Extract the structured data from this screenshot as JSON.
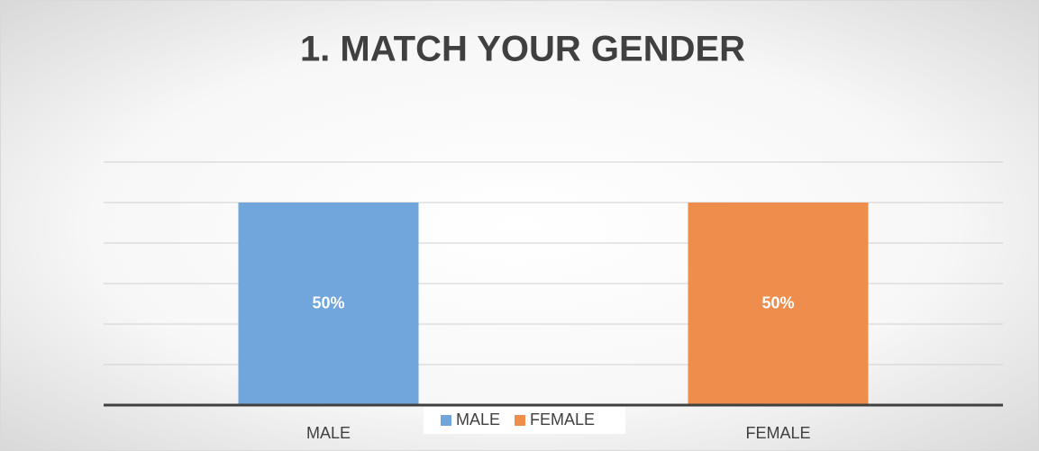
{
  "chart_data": {
    "type": "bar",
    "title": "1. MATCH YOUR GENDER",
    "categories": [
      "MALE",
      "FEMALE"
    ],
    "series": [
      {
        "name": "MALE",
        "color": "#70a6db",
        "values": [
          50,
          null
        ],
        "value_labels": [
          "50%",
          null
        ]
      },
      {
        "name": "FEMALE",
        "color": "#ef8d4c",
        "values": [
          null,
          50
        ],
        "value_labels": [
          null,
          "50%"
        ]
      }
    ],
    "ylim": [
      0,
      60
    ],
    "yticks": [
      0,
      10,
      20,
      30,
      40,
      50,
      60
    ],
    "grid": true,
    "legend": "bottom"
  }
}
